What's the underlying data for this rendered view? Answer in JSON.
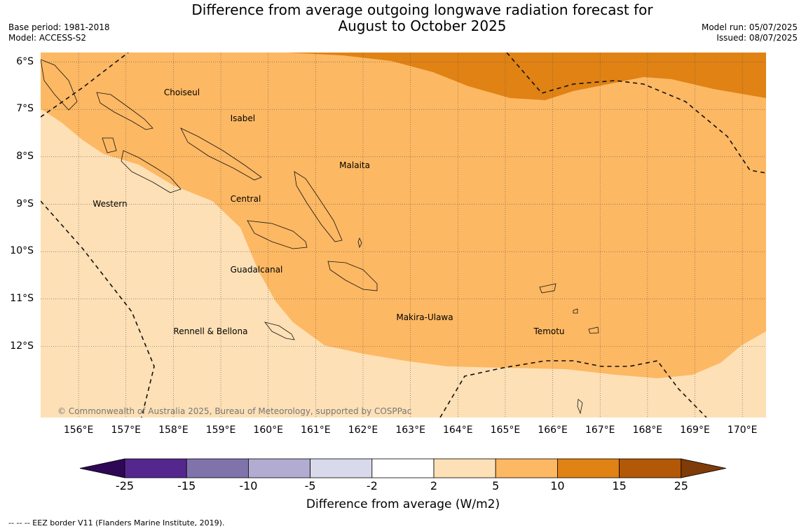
{
  "title_line1": "Difference from average outgoing longwave radiation forecast for",
  "title_line2": "August to October 2025",
  "meta_left": {
    "base_period": "Base period: 1981-2018",
    "model": "Model: ACCESS-S2"
  },
  "meta_right": {
    "model_run": "Model run: 05/07/2025",
    "issued": "Issued: 08/07/2025"
  },
  "map": {
    "lon_range": [
      155.2,
      170.5
    ],
    "lat_range": [
      -5.8,
      -13.5
    ],
    "lat_ticks": [
      "6°S",
      "7°S",
      "8°S",
      "9°S",
      "10°S",
      "11°S",
      "12°S"
    ],
    "lat_values": [
      -6,
      -7,
      -8,
      -9,
      -10,
      -11,
      -12
    ],
    "lon_ticks": [
      "156°E",
      "157°E",
      "158°E",
      "159°E",
      "160°E",
      "161°E",
      "162°E",
      "163°E",
      "164°E",
      "165°E",
      "166°E",
      "167°E",
      "168°E",
      "169°E",
      "170°E"
    ],
    "lon_values": [
      156,
      157,
      158,
      159,
      160,
      161,
      162,
      163,
      164,
      165,
      166,
      167,
      168,
      169,
      170
    ],
    "regions": [
      {
        "name": "Choiseul",
        "lon": 157.8,
        "lat": -6.65
      },
      {
        "name": "Isabel",
        "lon": 159.2,
        "lat": -7.2
      },
      {
        "name": "Malaita",
        "lon": 161.5,
        "lat": -8.2
      },
      {
        "name": "Central",
        "lon": 159.2,
        "lat": -8.9
      },
      {
        "name": "Western",
        "lon": 156.3,
        "lat": -9.0
      },
      {
        "name": "Guadalcanal",
        "lon": 159.2,
        "lat": -10.4
      },
      {
        "name": "Makira-Ulawa",
        "lon": 162.7,
        "lat": -11.4
      },
      {
        "name": "Temotu",
        "lon": 165.6,
        "lat": -11.7
      },
      {
        "name": "Rennell & Bellona",
        "lon": 158.0,
        "lat": -11.7
      }
    ],
    "copyright": "© Commonwealth of Australia 2025, Bureau of Meteorology, supported by COSPPac"
  },
  "colorbar": {
    "ticks": [
      "-25",
      "-15",
      "-10",
      "-5",
      "-2",
      "2",
      "5",
      "10",
      "15",
      "25"
    ],
    "colors": [
      "#2e0854",
      "#54278f",
      "#8073ac",
      "#b2abd2",
      "#d8daeb",
      "#ffffff",
      "#fee0b6",
      "#fdb863",
      "#e08214",
      "#b35806",
      "#7f3b08"
    ],
    "label": "Difference from average (W/m2)"
  },
  "footnote": "--  --  -- EEZ border V11 (Flanders Marine Institute, 2019)."
}
